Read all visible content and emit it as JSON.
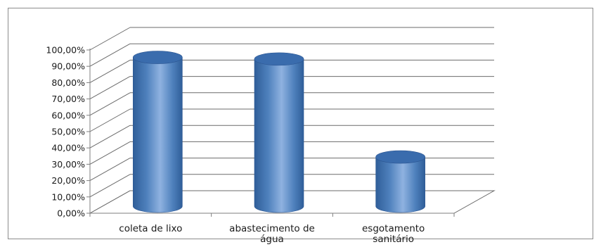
{
  "chart_data": {
    "type": "bar",
    "style": "3d-cylinder",
    "categories": [
      [
        "coleta de lixo"
      ],
      [
        "abastecimento de",
        "água"
      ],
      [
        "esgotamento",
        "sanitário"
      ]
    ],
    "values": [
      92.0,
      91.0,
      31.0
    ],
    "y_ticks": [
      "0,00%",
      "10,00%",
      "20,00%",
      "30,00%",
      "40,00%",
      "50,00%",
      "60,00%",
      "70,00%",
      "80,00%",
      "90,00%",
      "100,00%"
    ],
    "ylim": [
      0,
      100
    ],
    "grid": true,
    "legend": "none",
    "colors": {
      "bar_dark": "#2f5e99",
      "bar_mid": "#4f81bd",
      "bar_light": "#8fb2e0",
      "bar_top": "#3a6cad",
      "grid": "#6b6b6b",
      "frame": "#7f7f7f"
    }
  }
}
